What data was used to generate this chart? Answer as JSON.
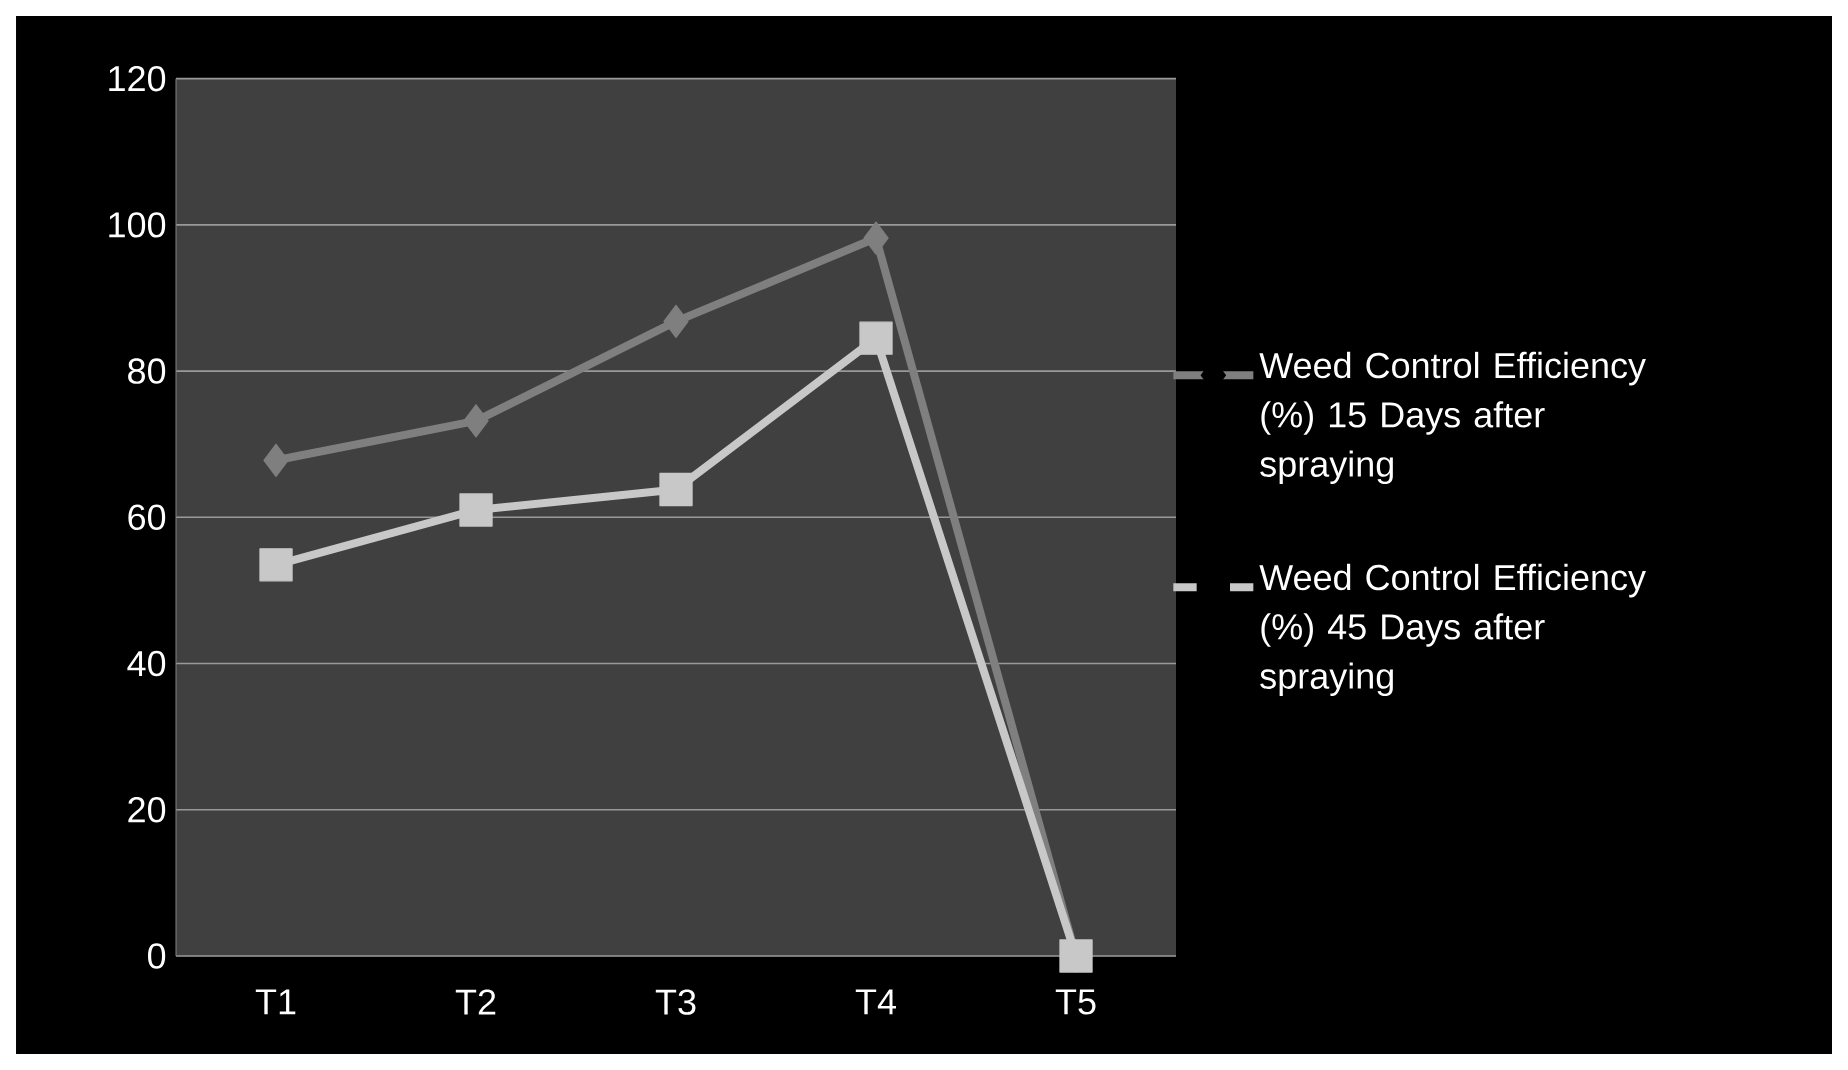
{
  "chart_data": {
    "type": "line",
    "categories": [
      "T1",
      "T2",
      "T3",
      "T4",
      "T5"
    ],
    "series": [
      {
        "name": "Weed Control Efficiency (%) 15 Days after spraying",
        "color": "#7f7f7f",
        "marker": "diamond",
        "values": [
          67.8,
          73.2,
          86.8,
          98.2,
          0
        ]
      },
      {
        "name": "Weed Control Efficiency (%) 45 Days after spraying",
        "color": "#c8c8c8",
        "marker": "square",
        "values": [
          53.5,
          61,
          63.8,
          84.5,
          0
        ]
      }
    ],
    "ylim": [
      0,
      120
    ],
    "yticks": [
      0,
      20,
      40,
      60,
      80,
      100,
      120
    ],
    "grid": "y",
    "legend": "right",
    "line_style": "solid"
  }
}
